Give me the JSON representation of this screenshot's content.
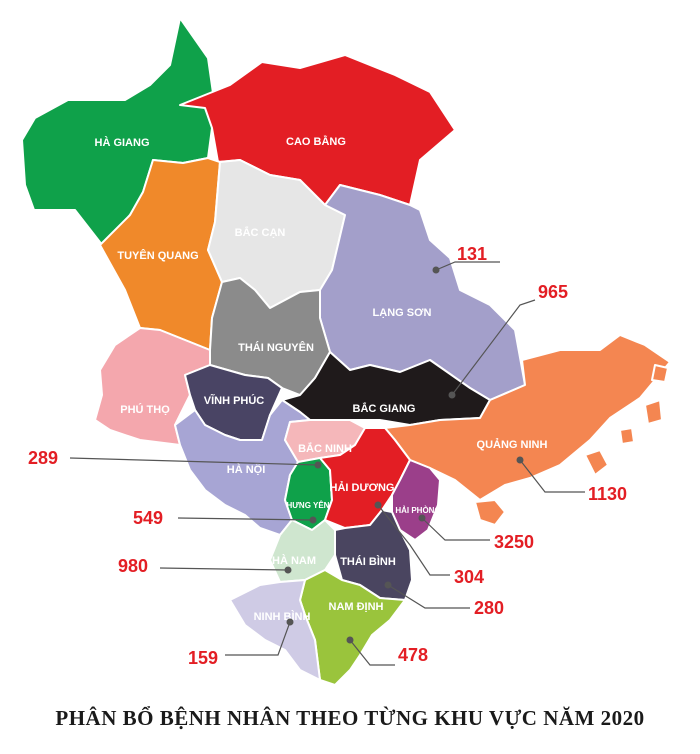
{
  "title": "PHÂN BỔ BỆNH NHÂN THEO TỪNG KHU VỰC NĂM 2020",
  "colors": {
    "ha_giang": "#0fa14a",
    "cao_bang": "#e31e24",
    "tuyen_quang": "#f0892a",
    "bac_can": "#e6e6e6",
    "lang_son": "#a39fca",
    "thai_nguyen": "#8b8b8b",
    "phu_tho": "#f4a7ad",
    "vinh_phuc": "#494464",
    "bac_giang": "#1f1a1b",
    "quang_ninh": "#f48651",
    "ha_noi": "#a7a5d4",
    "bac_ninh": "#f5b7ba",
    "hung_yen": "#0fa14a",
    "hai_duong": "#e31e24",
    "hai_phong": "#9b3f8a",
    "ha_nam": "#cfe6cf",
    "thai_binh": "#4a4560",
    "nam_dinh": "#9ac43c",
    "ninh_binh": "#cfcbe5",
    "value_text": "#e31e24"
  },
  "provinces": {
    "ha_giang": "HÀ GIANG",
    "cao_bang": "CAO BẰNG",
    "tuyen_quang": "TUYÊN QUANG",
    "bac_can": "BẮC CẠN",
    "lang_son": "LẠNG SƠN",
    "thai_nguyen": "THÁI NGUYÊN",
    "phu_tho": "PHÚ THỌ",
    "vinh_phuc": "VĨNH PHÚC",
    "bac_giang": "BẮC GIANG",
    "quang_ninh": "QUẢNG NINH",
    "ha_noi": "HÀ NỘI",
    "bac_ninh": "BẮC NINH",
    "hung_yen": "HƯNG YÊN",
    "hai_duong": "HẢI DƯƠNG",
    "hai_phong": "HẢI PHÒNG",
    "ha_nam": "HÀ NAM",
    "thai_binh": "THÁI BÌNH",
    "nam_dinh": "NAM ĐỊNH",
    "ninh_binh": "NINH BÌNH"
  },
  "patients": {
    "lang_son": "131",
    "bac_giang": "965",
    "quang_ninh": "1130",
    "hai_phong": "3250",
    "hai_duong": "304",
    "thai_binh": "280",
    "nam_dinh": "478",
    "ninh_binh": "159",
    "ha_nam": "980",
    "hung_yen": "549",
    "bac_ninh": "289"
  }
}
